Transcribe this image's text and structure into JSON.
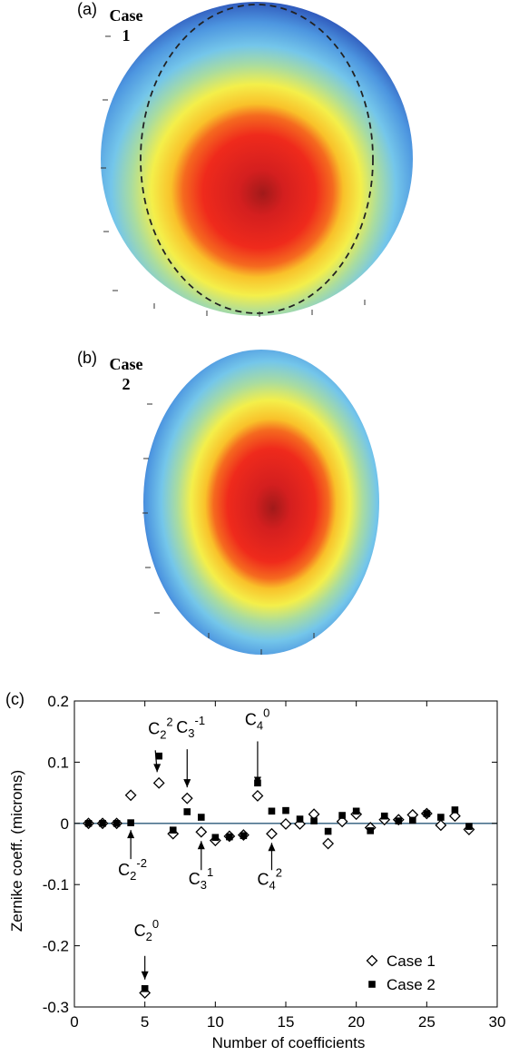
{
  "panel_a": {
    "letter": "(a)",
    "case_label": "Case",
    "case_number": "1"
  },
  "panel_b": {
    "letter": "(b)",
    "case_label": "Case",
    "case_number": "2"
  },
  "chart_data": {
    "type": "scatter",
    "panel_letter": "(c)",
    "title": "",
    "xlabel": "Number of coefficients",
    "ylabel": "Zernike coeff. (microns)",
    "xlim": [
      0,
      30
    ],
    "ylim": [
      -0.3,
      0.2
    ],
    "xticks": [
      0,
      5,
      10,
      15,
      20,
      25,
      30
    ],
    "yticks": [
      0.2,
      0.1,
      0,
      -0.1,
      -0.2,
      -0.3
    ],
    "ytick_labels": [
      "0.2",
      "0.1",
      "0",
      "-0.1",
      "-0.2",
      "-0.3"
    ],
    "grid": false,
    "legend_position": "bottom-right",
    "series": [
      {
        "name": "Case 1",
        "marker": "open-diamond",
        "x": [
          1,
          2,
          3,
          4,
          5,
          6,
          7,
          8,
          9,
          10,
          11,
          12,
          13,
          14,
          15,
          16,
          17,
          18,
          19,
          20,
          21,
          22,
          23,
          24,
          25,
          26,
          27,
          28
        ],
        "y": [
          0,
          0,
          0,
          0.046,
          -0.277,
          0.066,
          -0.017,
          0.041,
          -0.014,
          -0.028,
          -0.021,
          -0.019,
          0.045,
          -0.017,
          -0.001,
          -0.001,
          0.015,
          -0.033,
          0.003,
          0.015,
          -0.007,
          0.006,
          0.006,
          0.014,
          0.016,
          -0.003,
          0.012,
          -0.01
        ]
      },
      {
        "name": "Case 2",
        "marker": "filled-square",
        "x": [
          1,
          2,
          3,
          4,
          5,
          6,
          7,
          8,
          9,
          10,
          11,
          12,
          13,
          14,
          15,
          16,
          17,
          18,
          19,
          20,
          21,
          22,
          23,
          24,
          25,
          26,
          27,
          28
        ],
        "y": [
          0,
          0,
          0,
          0.001,
          -0.27,
          0.11,
          -0.011,
          0.019,
          0.01,
          -0.023,
          -0.022,
          -0.02,
          0.066,
          0.02,
          0.021,
          0.007,
          0.004,
          -0.013,
          0.013,
          0.02,
          -0.012,
          0.012,
          0.004,
          0.005,
          0.016,
          0.01,
          0.022,
          -0.005
        ]
      }
    ],
    "annotations": [
      {
        "base": "C",
        "sub": "2",
        "sup": "2",
        "x": 6,
        "y": 0.066
      },
      {
        "base": "C",
        "sub": "3",
        "sup": "-1",
        "x": 8,
        "y": 0.041
      },
      {
        "base": "C",
        "sub": "4",
        "sup": "0",
        "x": 13,
        "y": 0.045
      },
      {
        "base": "C",
        "sub": "2",
        "sup": "-2",
        "x": 4,
        "y": 0.001
      },
      {
        "base": "C",
        "sub": "3",
        "sup": "1",
        "x": 9,
        "y": -0.014
      },
      {
        "base": "C",
        "sub": "4",
        "sup": "2",
        "x": 14,
        "y": -0.017
      },
      {
        "base": "C",
        "sub": "2",
        "sup": "0",
        "x": 5,
        "y": -0.27
      }
    ]
  }
}
